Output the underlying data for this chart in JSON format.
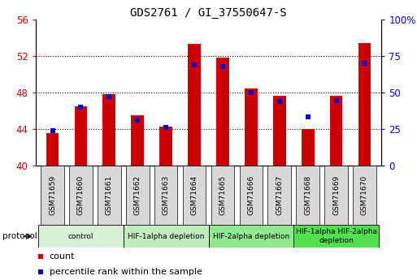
{
  "title": "GDS2761 / GI_37550647-S",
  "samples": [
    "GSM71659",
    "GSM71660",
    "GSM71661",
    "GSM71662",
    "GSM71663",
    "GSM71664",
    "GSM71665",
    "GSM71666",
    "GSM71667",
    "GSM71668",
    "GSM71669",
    "GSM71670"
  ],
  "count_values": [
    43.5,
    46.5,
    47.8,
    45.5,
    44.2,
    53.3,
    51.8,
    48.4,
    47.6,
    44.0,
    47.6,
    53.4
  ],
  "percentile_values": [
    23.5,
    40.0,
    47.0,
    31.0,
    26.0,
    69.0,
    67.5,
    50.0,
    44.0,
    33.0,
    44.5,
    70.0
  ],
  "ylim_left": [
    40,
    56
  ],
  "ylim_right": [
    0,
    100
  ],
  "yticks_left": [
    40,
    44,
    48,
    52,
    56
  ],
  "yticks_right": [
    0,
    25,
    50,
    75,
    100
  ],
  "ytick_labels_right": [
    "0",
    "25",
    "50",
    "75",
    "100%"
  ],
  "ytick_labels_left": [
    "40",
    "44",
    "48",
    "52",
    "56"
  ],
  "groups": [
    {
      "label": "control",
      "start": 0,
      "end": 3,
      "color": "#d8f0d8"
    },
    {
      "label": "HIF-1alpha depletion",
      "start": 3,
      "end": 6,
      "color": "#c0ecc0"
    },
    {
      "label": "HIF-2alpha depletion",
      "start": 6,
      "end": 9,
      "color": "#90e890"
    },
    {
      "label": "HIF-1alpha HIF-2alpha\ndepletion",
      "start": 9,
      "end": 12,
      "color": "#50e050"
    }
  ],
  "bar_color": "#cc0000",
  "marker_color": "#0000cc",
  "bar_width": 0.45,
  "marker_size": 5,
  "background_color": "#ffffff",
  "tick_color_left": "#cc0000",
  "tick_color_right": "#0000cc",
  "protocol_label": "protocol",
  "legend_count_label": "count",
  "legend_percentile_label": "percentile rank within the sample",
  "sample_box_color": "#d8d8d8",
  "grid_ticks": [
    44,
    48,
    52
  ]
}
